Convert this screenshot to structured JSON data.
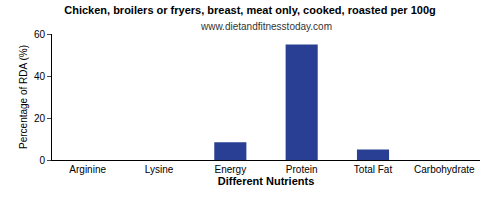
{
  "chart_data": {
    "type": "bar",
    "title": "Chicken, broilers or fryers, breast, meat only, cooked, roasted per 100g",
    "subtitle": "www.dietandfitnesstoday.com",
    "x_label": "Different Nutrients",
    "y_label": "Percentage of RDA (%)",
    "categories": [
      "Arginine",
      "Lysine",
      "Energy",
      "Protein",
      "Total Fat",
      "Carbohydrate"
    ],
    "values": [
      0,
      0,
      8.5,
      55,
      5,
      0
    ],
    "color": "#283f94",
    "ylim": [
      0,
      60
    ],
    "yticks": [
      0,
      20,
      40,
      60
    ],
    "grid": false
  }
}
